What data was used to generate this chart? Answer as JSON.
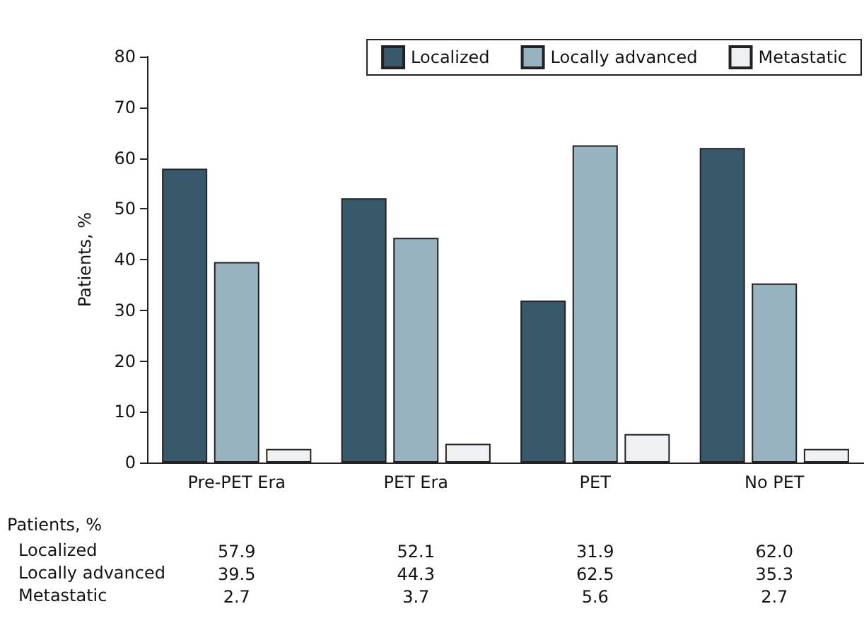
{
  "chart_data": {
    "type": "bar",
    "ylabel": "Patients, %",
    "categories": [
      "Pre-PET Era",
      "PET Era",
      "PET",
      "No PET"
    ],
    "series": [
      {
        "name": "Localized",
        "color": "#37596a",
        "values": [
          57.9,
          52.1,
          31.9,
          62.0
        ],
        "value_labels": [
          "57.9",
          "52.1",
          "31.9",
          "62.0"
        ]
      },
      {
        "name": "Locally advanced",
        "color": "#97b3bf",
        "values": [
          39.5,
          44.3,
          62.5,
          35.3
        ],
        "value_labels": [
          "39.5",
          "44.3",
          "62.5",
          "35.3"
        ]
      },
      {
        "name": "Metastatic",
        "color": "#eef0f3",
        "values": [
          2.7,
          3.7,
          5.6,
          2.7
        ],
        "value_labels": [
          "2.7",
          "3.7",
          "5.6",
          "2.7"
        ]
      }
    ],
    "ylim": [
      0,
      80
    ],
    "yticks": [
      0,
      10,
      20,
      30,
      40,
      50,
      60,
      70,
      80
    ],
    "grid": false,
    "legend": "top right",
    "annotations": [
      "Patients, %"
    ]
  }
}
